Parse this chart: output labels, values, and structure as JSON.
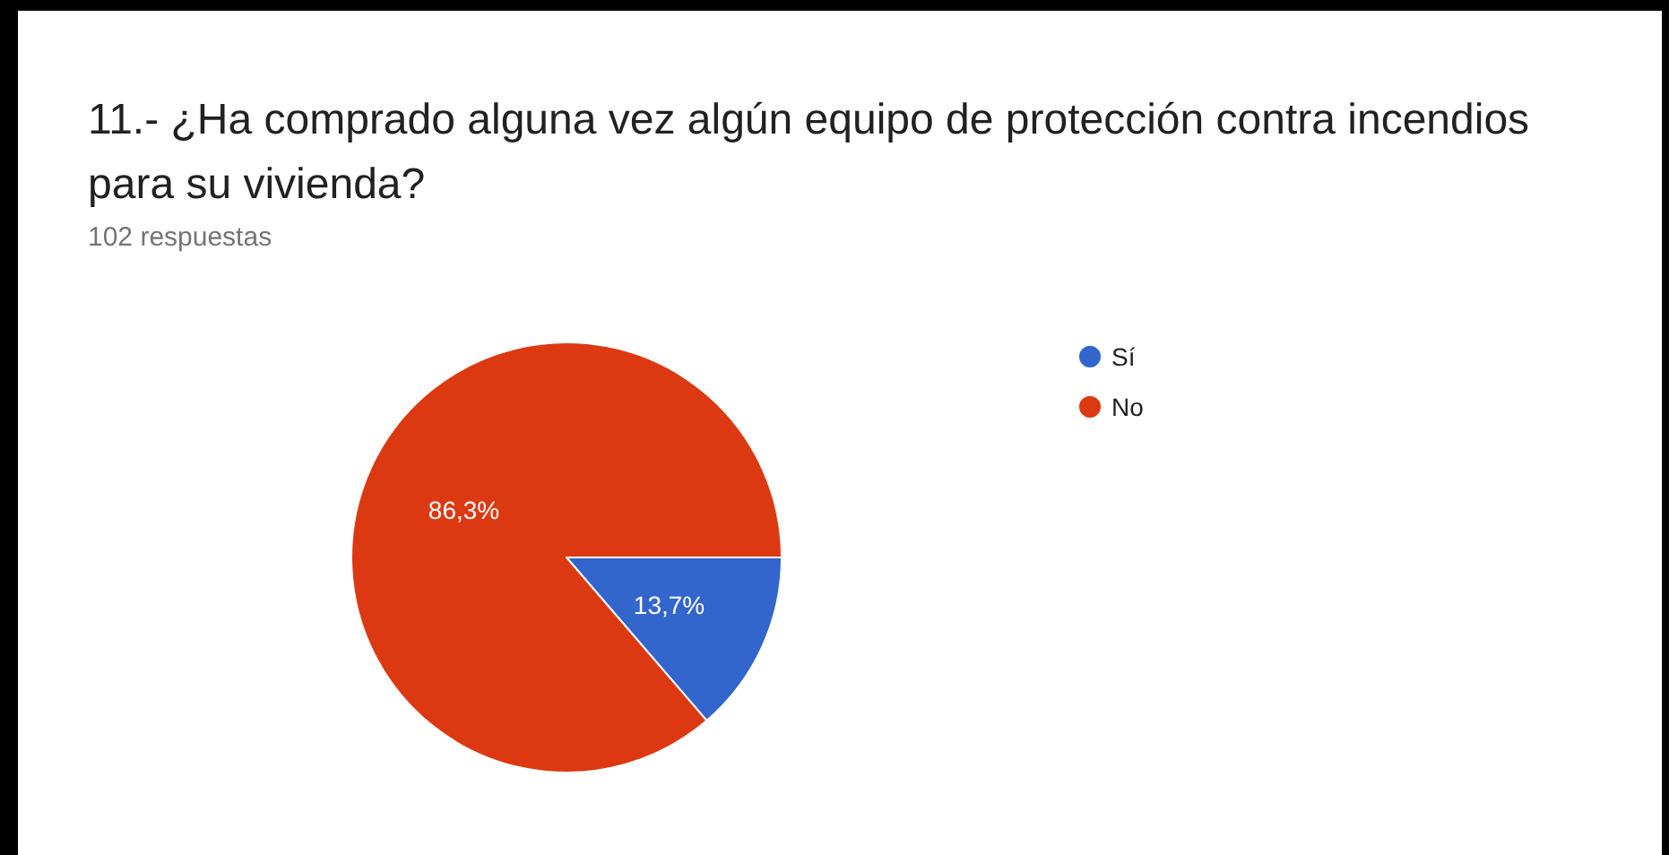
{
  "chart_data": {
    "type": "pie",
    "title": "11.- ¿Ha comprado alguna vez algún equipo de protección contra incendios para su vivienda?",
    "subtitle": "102 respuestas",
    "categories": [
      "Sí",
      "No"
    ],
    "values": [
      13.7,
      86.3
    ],
    "colors": [
      "#3366cc",
      "#dc3912"
    ],
    "value_labels": [
      "13,7%",
      "86,3%"
    ],
    "legend": "right"
  }
}
